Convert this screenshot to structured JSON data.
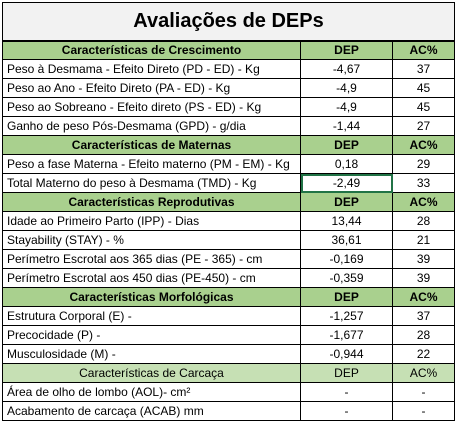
{
  "title": "Avaliações de DEPs",
  "header_dep": "DEP",
  "header_ac": "AC%",
  "sections": [
    {
      "heading": "Características de Crescimento",
      "rows": [
        {
          "label": "Peso à Desmama - Efeito Direto (PD - ED) - Kg",
          "dep": "-4,67",
          "ac": "37"
        },
        {
          "label": "Peso ao Ano - Efeito Direto (PA - ED) - Kg",
          "dep": "-4,9",
          "ac": "45"
        },
        {
          "label": "Peso ao Sobreano - Efeito direto (PS - ED) - Kg",
          "dep": "-4,9",
          "ac": "45"
        },
        {
          "label": "Ganho de peso Pós-Desmama (GPD) - g/dia",
          "dep": "-1,44",
          "ac": "27"
        }
      ]
    },
    {
      "heading": "Características de Maternas",
      "rows": [
        {
          "label": "Peso a fase Materna - Efeito materno (PM - EM) - Kg",
          "dep": "0,18",
          "ac": "29"
        },
        {
          "label": "Total Materno do peso à Desmama (TMD) - Kg",
          "dep": "-2,49",
          "ac": "33",
          "selected": true
        }
      ]
    },
    {
      "heading": "Características Reprodutivas",
      "rows": [
        {
          "label": "Idade ao Primeiro Parto (IPP) - Dias",
          "dep": "13,44",
          "ac": "28"
        },
        {
          "label": "Stayability (STAY) - %",
          "dep": "36,61",
          "ac": "21"
        },
        {
          "label": "Perímetro Escrotal aos 365 dias (PE - 365) - cm",
          "dep": "-0,169",
          "ac": "39"
        },
        {
          "label": "Perímetro Escrotal aos 450 dias (PE-450) - cm",
          "dep": "-0,359",
          "ac": "39"
        }
      ]
    },
    {
      "heading": "Características Morfológicas",
      "rows": [
        {
          "label": "Estrutura Corporal (E) -",
          "dep": "-1,257",
          "ac": "37"
        },
        {
          "label": "Precocidade (P) -",
          "dep": "-1,677",
          "ac": "28"
        },
        {
          "label": "Musculosidade (M) -",
          "dep": "-0,944",
          "ac": "22"
        }
      ]
    },
    {
      "heading": "Características de Carcaça",
      "last": true,
      "rows": [
        {
          "label": "Área de olho de lombo (AOL)- cm²",
          "dep": "-",
          "ac": "-"
        },
        {
          "label": "Acabamento de carcaça (ACAB) mm",
          "dep": "-",
          "ac": "-"
        }
      ]
    }
  ]
}
